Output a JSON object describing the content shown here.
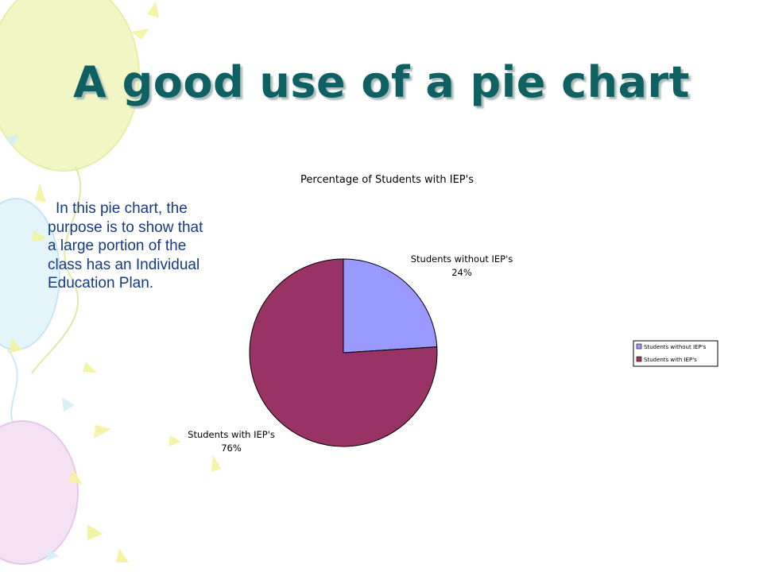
{
  "slide": {
    "title": "A good use of a pie chart",
    "body": "In this pie chart, the purpose is to show that a large portion of the class has an Individual Education Plan."
  },
  "colors": {
    "title": "#0f6062",
    "body_text": "#163a86"
  },
  "chart_data": {
    "type": "pie",
    "title": "Percentage of Students with IEP's",
    "categories": [
      "Students without IEP's",
      "Students with IEP's"
    ],
    "values": [
      24,
      76
    ],
    "data_labels": [
      "24%",
      "76%"
    ],
    "colors": [
      "#9999ff",
      "#993366"
    ],
    "legend": {
      "placement": "right",
      "entries": [
        "Students without IEP's",
        "Students with IEP's"
      ]
    }
  }
}
